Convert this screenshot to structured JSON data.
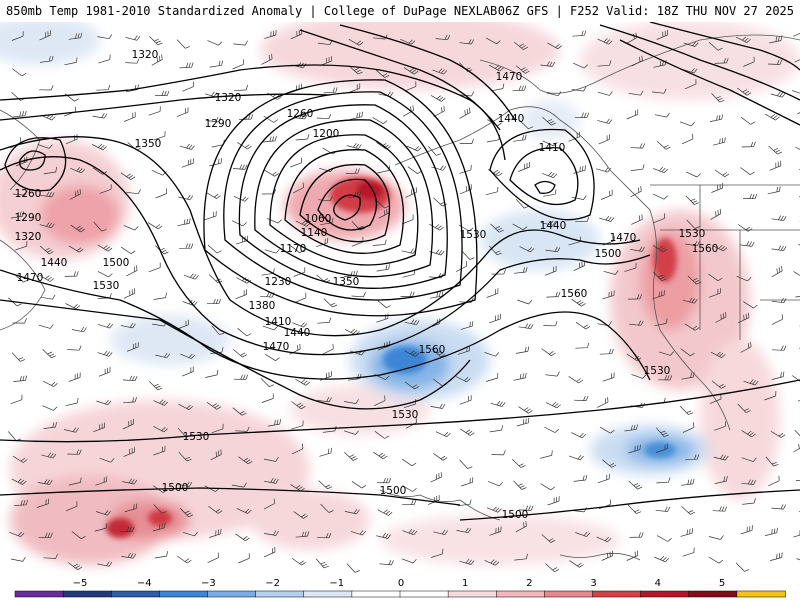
{
  "header": {
    "left_title": "850mb Temp 1981-2010 Standardized Anomaly | College of DuPage NEXLAB",
    "right_title": "06Z GFS | F252 Valid: 18Z THU NOV 27 2025"
  },
  "contour_labels": [
    "1320",
    "1320",
    "1290",
    "1260",
    "1200",
    "1350",
    "1260",
    "1290",
    "1320",
    "1440",
    "1470",
    "1500",
    "1530",
    "1060",
    "1140",
    "1170",
    "1230",
    "1350",
    "1380",
    "1410",
    "1440",
    "1470",
    "1470",
    "1440",
    "1410",
    "1440",
    "1530",
    "1470",
    "1500",
    "1530",
    "1560",
    "1560",
    "1560",
    "1530",
    "1530",
    "1530",
    "1500",
    "1500",
    "1500"
  ],
  "colorbar": {
    "ticks": [
      "−5",
      "−4",
      "−3",
      "−2",
      "−1",
      "0",
      "1",
      "2",
      "3",
      "4",
      "5"
    ],
    "colors": [
      "#6a2c9b",
      "#233a78",
      "#2f5ea8",
      "#3c86d6",
      "#79aee5",
      "#b5cfee",
      "#dbe7f6",
      "#ffffff",
      "#ffffff",
      "#f7dadd",
      "#f2b6bb",
      "#e7878e",
      "#d24148",
      "#b5162a",
      "#850a1a",
      "#f2c318"
    ]
  }
}
